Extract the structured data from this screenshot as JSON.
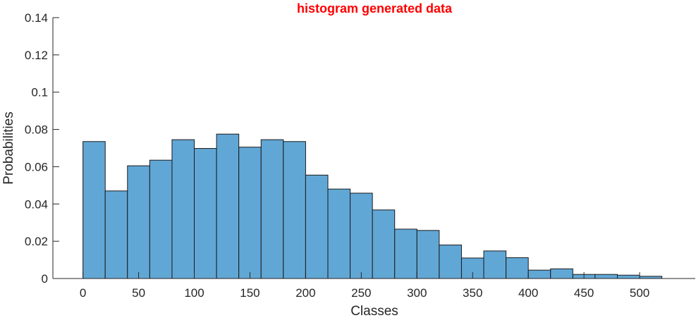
{
  "chart_data": {
    "type": "bar",
    "title": "histogram generated data",
    "xlabel": "Classes",
    "ylabel": "Probabilities",
    "xlim": [
      -27,
      550
    ],
    "ylim": [
      0,
      0.14
    ],
    "xticks": [
      0,
      50,
      100,
      150,
      200,
      250,
      300,
      350,
      400,
      450,
      500
    ],
    "yticks": [
      0,
      0.02,
      0.04,
      0.06,
      0.08,
      0.1,
      0.12,
      0.14
    ],
    "ytick_labels": [
      "0",
      "0.02",
      "0.04",
      "0.06",
      "0.08",
      "0.1",
      "0.12",
      "0.14"
    ],
    "bin_edges": [
      0,
      20,
      40,
      60,
      80,
      100,
      120,
      140,
      160,
      180,
      200,
      220,
      240,
      260,
      280,
      300,
      320,
      340,
      360,
      380,
      400,
      420,
      440,
      460,
      480,
      500,
      520
    ],
    "values": [
      0.0735,
      0.047,
      0.0605,
      0.0635,
      0.0745,
      0.0698,
      0.0775,
      0.0705,
      0.0745,
      0.0735,
      0.0555,
      0.048,
      0.0458,
      0.0368,
      0.0265,
      0.0258,
      0.018,
      0.011,
      0.0148,
      0.0112,
      0.0045,
      0.0052,
      0.0022,
      0.0022,
      0.0018,
      0.0012
    ],
    "grid": false,
    "bar_color": "#61a7d6",
    "edge_color": "#1a1a1a",
    "title_color": "#ff0000",
    "axis_color": "#262626"
  }
}
